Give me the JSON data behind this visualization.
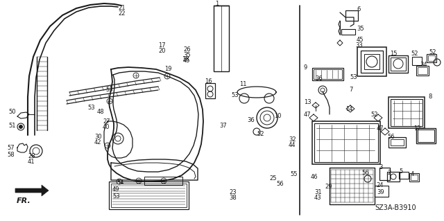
{
  "background_color": "#ffffff",
  "diagram_code": "SZ3A-B3910",
  "fig_width": 6.4,
  "fig_height": 3.19,
  "dpi": 100,
  "line_color": "#1a1a1a",
  "text_color": "#1a1a1a",
  "font_size": 6.0
}
